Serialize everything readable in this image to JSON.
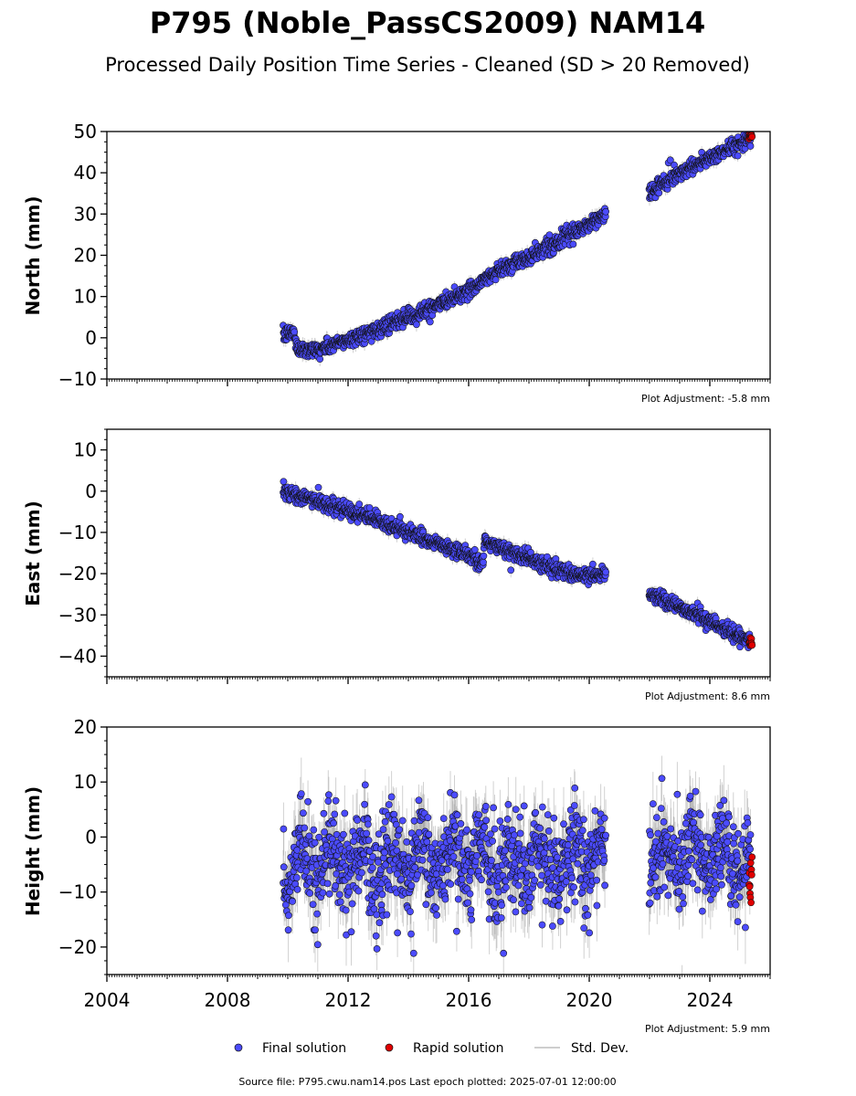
{
  "header": {
    "title": "P795 (Noble_PassCS2009) NAM14",
    "subtitle": "Processed Daily Position Time Series - Cleaned (SD > 20 Removed)"
  },
  "legend": {
    "final": "Final solution",
    "rapid": "Rapid solution",
    "std": "Std. Dev."
  },
  "footer": {
    "source": "Source file: P795.cwu.nam14.pos  Last epoch plotted: 2025-07-01 12:00:00"
  },
  "colors": {
    "final": "#4b4bff",
    "rapid": "#e00000",
    "std": "#9a9a9a",
    "marker_edge": "#111111"
  },
  "chart_data": [
    {
      "type": "scatter",
      "id": "north",
      "ylabel": "North (mm)",
      "adjustment": "Plot Adjustment: -5.8 mm",
      "xlim": [
        2004,
        2026
      ],
      "ylim": [
        -10,
        50
      ],
      "yticks": [
        -10,
        0,
        10,
        20,
        30,
        40,
        50
      ],
      "ytick_labels": [
        "−10",
        "0",
        "10",
        "20",
        "30",
        "40",
        "50"
      ],
      "noise": 0.9,
      "sd": 1.2,
      "trend": [
        {
          "x": 2009.85,
          "y": 0.5
        },
        {
          "x": 2010.2,
          "y": 1.5
        },
        {
          "x": 2010.3,
          "y": -2.5
        },
        {
          "x": 2011.0,
          "y": -3.0
        },
        {
          "x": 2012.0,
          "y": -0.5
        },
        {
          "x": 2013.0,
          "y": 2.0
        },
        {
          "x": 2014.0,
          "y": 5.0
        },
        {
          "x": 2015.0,
          "y": 8.0
        },
        {
          "x": 2016.0,
          "y": 11.5
        },
        {
          "x": 2016.5,
          "y": 14.0
        },
        {
          "x": 2017.0,
          "y": 16.5
        },
        {
          "x": 2018.0,
          "y": 19.5
        },
        {
          "x": 2019.0,
          "y": 23.5
        },
        {
          "x": 2020.0,
          "y": 27.5
        },
        {
          "x": 2020.55,
          "y": 30.0
        },
        {
          "x": 2022.0,
          "y": 35.0
        },
        {
          "x": 2023.0,
          "y": 40.0
        },
        {
          "x": 2024.0,
          "y": 43.5
        },
        {
          "x": 2025.35,
          "y": 48.5
        }
      ],
      "gaps": [
        [
          2020.55,
          2021.98
        ]
      ],
      "rapid": {
        "x0": 2025.3,
        "x1": 2025.4,
        "y": 49.0,
        "spread": 0.6,
        "count": 10
      }
    },
    {
      "type": "scatter",
      "id": "east",
      "ylabel": "East (mm)",
      "adjustment": "Plot Adjustment: 8.6 mm",
      "xlim": [
        2004,
        2026
      ],
      "ylim": [
        -45,
        15
      ],
      "yticks": [
        -40,
        -30,
        -20,
        -10,
        0,
        10
      ],
      "ytick_labels": [
        "−40",
        "−30",
        "−20",
        "−10",
        "0",
        "10"
      ],
      "noise": 0.9,
      "sd": 1.2,
      "trend": [
        {
          "x": 2009.85,
          "y": 0.0
        },
        {
          "x": 2011.0,
          "y": -2.5
        },
        {
          "x": 2012.0,
          "y": -5.0
        },
        {
          "x": 2013.0,
          "y": -7.0
        },
        {
          "x": 2014.0,
          "y": -10.0
        },
        {
          "x": 2015.0,
          "y": -13.0
        },
        {
          "x": 2016.0,
          "y": -15.5
        },
        {
          "x": 2016.48,
          "y": -17.5
        },
        {
          "x": 2016.52,
          "y": -12.0
        },
        {
          "x": 2017.0,
          "y": -13.5
        },
        {
          "x": 2018.0,
          "y": -16.5
        },
        {
          "x": 2019.0,
          "y": -19.0
        },
        {
          "x": 2019.5,
          "y": -20.5
        },
        {
          "x": 2020.55,
          "y": -20.0
        },
        {
          "x": 2022.0,
          "y": -25.0
        },
        {
          "x": 2023.0,
          "y": -28.0
        },
        {
          "x": 2024.0,
          "y": -31.5
        },
        {
          "x": 2025.35,
          "y": -36.5
        }
      ],
      "gaps": [
        [
          2020.55,
          2021.98
        ]
      ],
      "rapid": {
        "x0": 2025.3,
        "x1": 2025.4,
        "y": -37.0,
        "spread": 0.6,
        "count": 10
      }
    },
    {
      "type": "scatter",
      "id": "height",
      "ylabel": "Height (mm)",
      "adjustment": "Plot Adjustment: 5.9 mm",
      "xlim": [
        2004,
        2026
      ],
      "ylim": [
        -25,
        20
      ],
      "yticks": [
        -20,
        -10,
        0,
        10,
        20
      ],
      "ytick_labels": [
        "−20",
        "−10",
        "0",
        "10",
        "20"
      ],
      "xticks": [
        2004,
        2008,
        2012,
        2016,
        2020,
        2024
      ],
      "xtick_labels": [
        "2004",
        "2008",
        "2012",
        "2016",
        "2020",
        "2024"
      ],
      "noise": 4.2,
      "sd": 4.5,
      "seasonal": 3.0,
      "trend": [
        {
          "x": 2009.85,
          "y": -5.0
        },
        {
          "x": 2020.55,
          "y": -4.0
        },
        {
          "x": 2022.0,
          "y": -3.0
        },
        {
          "x": 2025.35,
          "y": -5.0
        }
      ],
      "gaps": [
        [
          2020.55,
          2021.98
        ]
      ],
      "rapid": {
        "x0": 2025.3,
        "x1": 2025.4,
        "y": -7.0,
        "spread": 2.5,
        "count": 10
      }
    }
  ]
}
